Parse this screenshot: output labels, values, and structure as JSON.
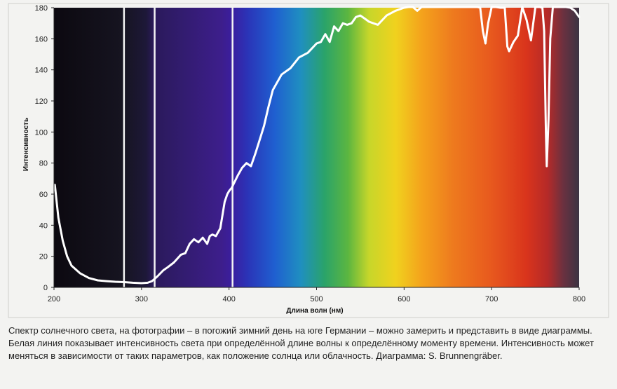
{
  "chart_data": {
    "type": "line",
    "xlabel": "Длина волн (нм)",
    "ylabel": "Интенсивность",
    "xlim": [
      200,
      800
    ],
    "ylim": [
      0,
      180
    ],
    "xticks": [
      200,
      300,
      400,
      500,
      600,
      700,
      800
    ],
    "yticks": [
      0,
      20,
      40,
      60,
      80,
      100,
      120,
      140,
      160,
      180
    ],
    "grid": false,
    "legend": "none",
    "background": "visible spectrum colour gradient",
    "vertical_markers": [
      280,
      315,
      404
    ],
    "series": [
      {
        "color": "#ffffff",
        "x": [
          201,
          205,
          210,
          215,
          220,
          230,
          240,
          250,
          260,
          270,
          280,
          290,
          300,
          307,
          312,
          318,
          325,
          330,
          337,
          345,
          350,
          355,
          360,
          365,
          370,
          375,
          378,
          381,
          385,
          390,
          395,
          398,
          400,
          403,
          410,
          415,
          420,
          425,
          430,
          435,
          440,
          445,
          450,
          460,
          470,
          480,
          490,
          500,
          505,
          510,
          515,
          520,
          525,
          530,
          535,
          540,
          545,
          550,
          555,
          560,
          570,
          580,
          590,
          600,
          605,
          610,
          615,
          620,
          625,
          630,
          635,
          640,
          645,
          650,
          655,
          660,
          665,
          670,
          675,
          680,
          684,
          687,
          690,
          693,
          696,
          700,
          705,
          710,
          715,
          718,
          720,
          725,
          730,
          735,
          740,
          745,
          750,
          755,
          758,
          760,
          762,
          763,
          765,
          767,
          770,
          775,
          780,
          785,
          790,
          795,
          800
        ],
        "y": [
          66,
          45,
          30,
          20,
          14,
          9,
          6,
          4.5,
          4,
          3.6,
          3.4,
          3,
          2.7,
          3,
          4,
          7,
          11,
          13,
          16,
          21,
          22,
          28,
          31,
          29,
          32,
          28,
          33,
          34,
          33,
          38,
          55,
          60,
          62,
          64,
          72,
          77,
          80,
          78,
          86,
          95,
          104,
          116,
          127,
          137,
          141,
          148,
          151,
          157,
          158,
          163,
          158,
          168,
          165,
          170,
          169,
          170,
          174,
          175,
          173,
          171,
          169,
          175,
          178,
          180,
          183,
          181,
          178,
          181,
          183,
          183,
          185,
          183,
          185,
          183,
          187,
          186,
          184,
          185,
          183,
          184,
          182,
          180,
          165,
          157,
          170,
          182,
          182,
          180,
          180,
          155,
          152,
          158,
          162,
          183,
          172,
          159,
          183,
          183,
          180,
          165,
          100,
          78,
          108,
          160,
          185,
          186,
          184,
          183,
          180,
          178,
          174
        ]
      }
    ]
  },
  "caption": "Спектр солнечного света, на фотографии – в погожий зимний день на юге Германии – можно замерить и представить в виде диаграммы. Белая линия показывает интенсивность света при определённой длине волны к определённому моменту времени. Интенсивность может меняться в зависимости от таких параметров, как положение солнца или облачность. Диаграмма: S. Brunnengräber."
}
